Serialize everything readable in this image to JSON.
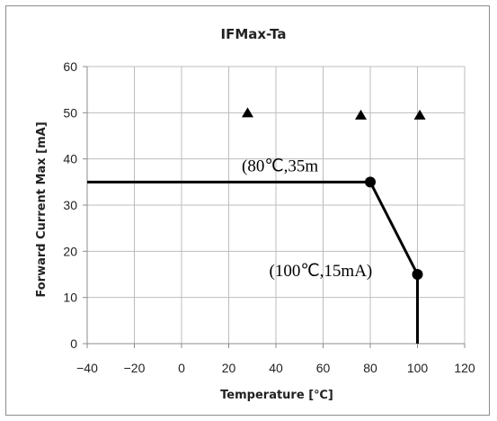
{
  "chart_data": {
    "type": "line",
    "title": "IFMax-Ta",
    "xlabel": "Temperature [℃]",
    "ylabel": "Forward Current Max [mA]",
    "xlim": [
      -40,
      120
    ],
    "ylim": [
      0,
      60
    ],
    "xticks": [
      -40,
      -20,
      0,
      20,
      40,
      60,
      80,
      100,
      120
    ],
    "yticks": [
      0,
      10,
      20,
      30,
      40,
      50,
      60
    ],
    "grid": true,
    "series": [
      {
        "values": [
          {
            "x": -40,
            "y": 35
          },
          {
            "x": 80,
            "y": 35
          },
          {
            "x": 100,
            "y": 15
          },
          {
            "x": 100,
            "y": 0
          }
        ],
        "color": "#000000"
      }
    ],
    "key_points": [
      {
        "x": 80,
        "y": 35
      },
      {
        "x": 100,
        "y": 15
      }
    ],
    "triangle_markers": [
      {
        "x": 28,
        "y": 50
      },
      {
        "x": 76,
        "y": 49.5
      },
      {
        "x": 101,
        "y": 49.5
      }
    ],
    "annotations": [
      {
        "text": "(80℃,35m",
        "x": 80,
        "y": 35
      },
      {
        "text": "(100℃,15mA)",
        "x": 100,
        "y": 15
      }
    ]
  }
}
